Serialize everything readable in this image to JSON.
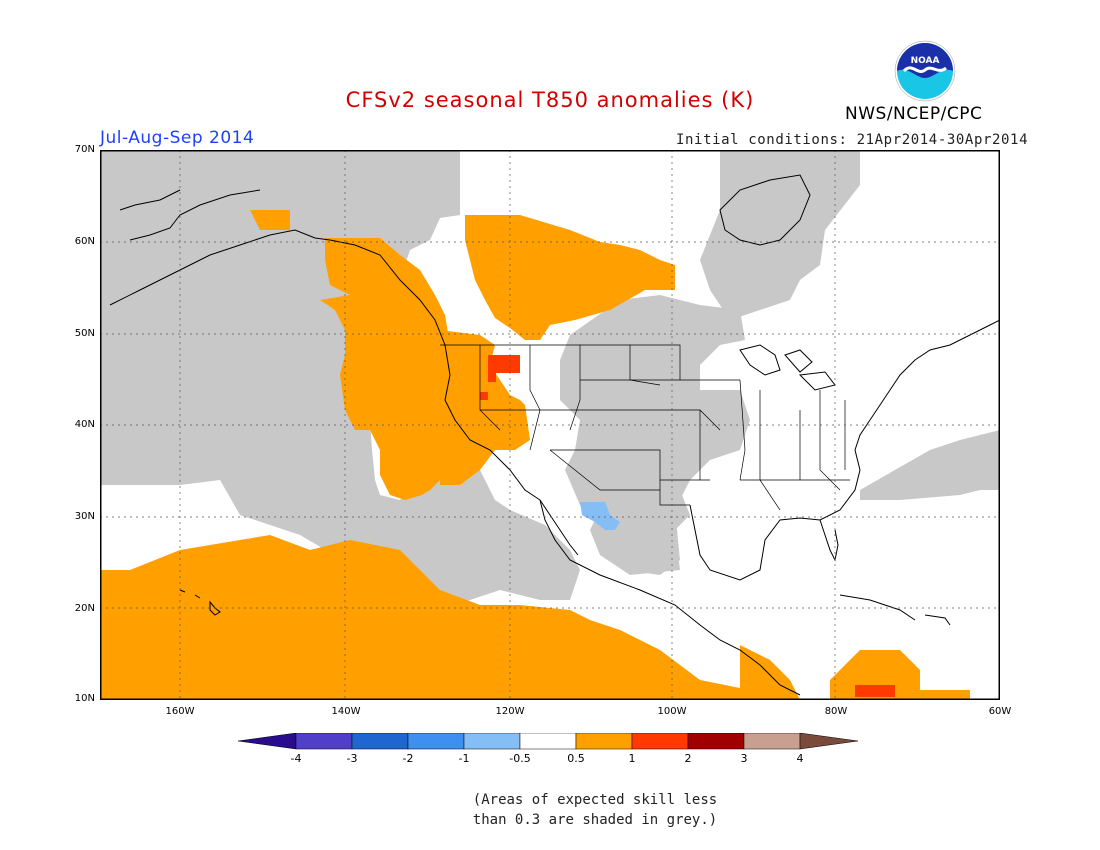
{
  "title": "CFSv2 seasonal T850 anomalies (K)",
  "agency": "NWS/NCEP/CPC",
  "logo_text": "NOAA",
  "season": "Jul-Aug-Sep 2014",
  "initial_conditions": "Initial conditions: 21Apr2014-30Apr2014",
  "latitude_labels": [
    "70N",
    "60N",
    "50N",
    "40N",
    "30N",
    "20N",
    "10N"
  ],
  "longitude_labels": [
    "160W",
    "140W",
    "120W",
    "100W",
    "80W",
    "60W"
  ],
  "colorbar": {
    "colors": [
      "#2a0d8c",
      "#5040c9",
      "#1f66d1",
      "#3f8ff0",
      "#85bdf5",
      "#ffffff",
      "#ff9f00",
      "#ff3a00",
      "#a00000",
      "#c9a08f",
      "#7a4a3a"
    ],
    "labels": [
      "-4",
      "-3",
      "-2",
      "-1",
      "-0.5",
      "0.5",
      "1",
      "2",
      "3",
      "4"
    ]
  },
  "footnote": [
    "(Areas of expected skill less",
    "than 0.3 are shaded in grey.)"
  ],
  "map_colors": {
    "grey": "#c8c8c8",
    "orange": "#ff9f00",
    "red": "#ff3a00",
    "blue": "#85bdf5"
  }
}
